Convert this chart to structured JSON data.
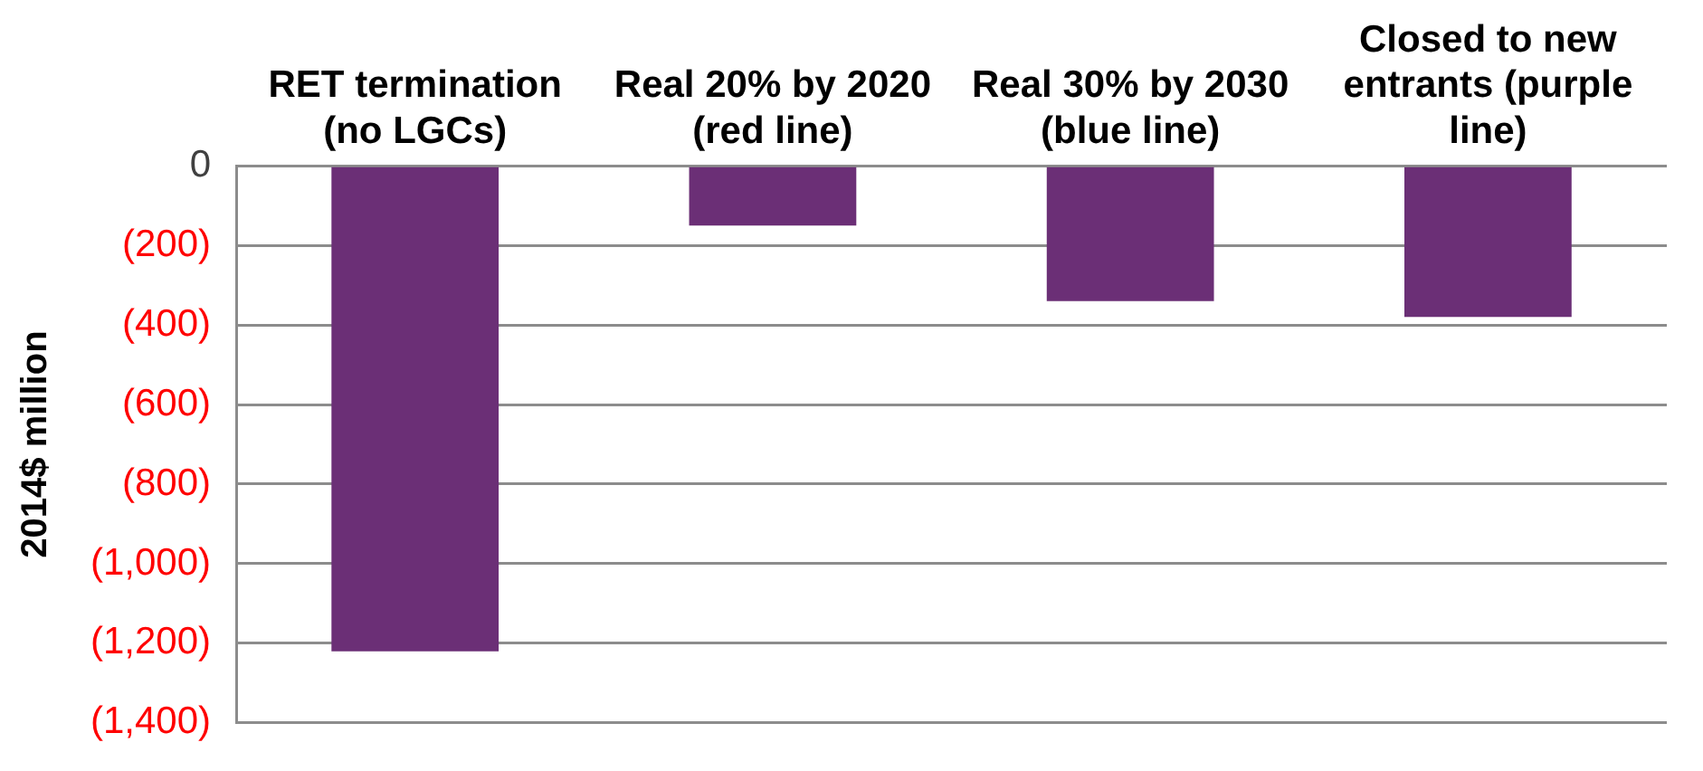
{
  "chart_data": {
    "type": "bar",
    "ylabel": "2014$ million",
    "categories": [
      "RET termination (no LGCs)",
      "Real 20% by 2020 (red line)",
      "Real 30% by 2030 (blue line)",
      "Closed to new entrants (purple line)"
    ],
    "values": [
      -1220,
      -150,
      -340,
      -380
    ],
    "color": "#6b2f76",
    "ylim": [
      -1400,
      0
    ],
    "yticks": [
      {
        "value": 0,
        "label": "0"
      },
      {
        "value": -200,
        "label": "(200)"
      },
      {
        "value": -400,
        "label": "(400)"
      },
      {
        "value": -600,
        "label": "(600)"
      },
      {
        "value": -800,
        "label": "(800)"
      },
      {
        "value": -1000,
        "label": "(1,000)"
      },
      {
        "value": -1200,
        "label": "(1,200)"
      },
      {
        "value": -1400,
        "label": "(1,400)"
      }
    ],
    "grid": "y"
  }
}
